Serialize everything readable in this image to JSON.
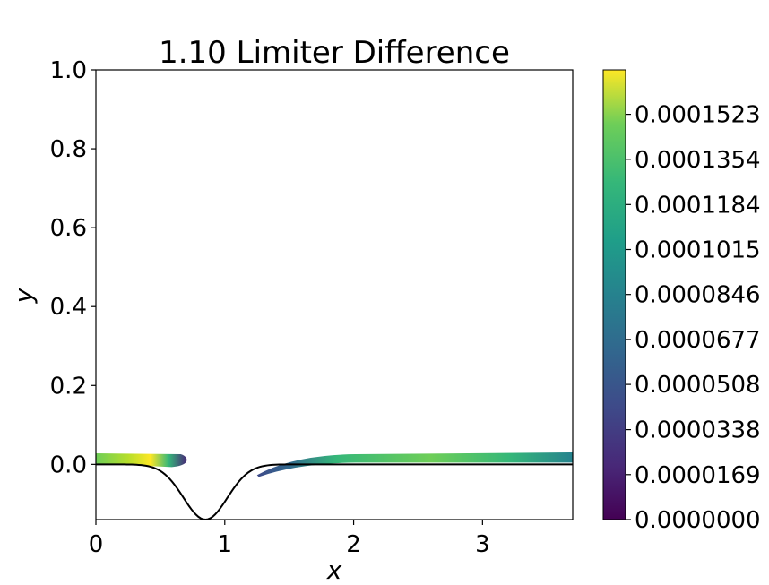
{
  "chart_data": {
    "type": "heatmap",
    "title": "1.10 Limiter Difference",
    "xlabel": "x",
    "ylabel": "y",
    "xlim": [
      0,
      3.7
    ],
    "ylim": [
      -0.14,
      1.0
    ],
    "x_ticks": [
      {
        "value": 0,
        "label": "0"
      },
      {
        "value": 1,
        "label": "1"
      },
      {
        "value": 2,
        "label": "2"
      },
      {
        "value": 3,
        "label": "3"
      }
    ],
    "y_ticks": [
      {
        "value": 0.0,
        "label": "0.0"
      },
      {
        "value": 0.2,
        "label": "0.2"
      },
      {
        "value": 0.4,
        "label": "0.4"
      },
      {
        "value": 0.6,
        "label": "0.6"
      },
      {
        "value": 0.8,
        "label": "0.8"
      },
      {
        "value": 1.0,
        "label": "1.0"
      }
    ],
    "colorbar": {
      "colormap": "viridis",
      "range": [
        0.0,
        0.000169
      ],
      "ticks": [
        {
          "value": 0.0,
          "label": "0.0000000"
        },
        {
          "value": 1.69e-05,
          "label": "0.0000169"
        },
        {
          "value": 3.38e-05,
          "label": "0.0000338"
        },
        {
          "value": 5.08e-05,
          "label": "0.0000508"
        },
        {
          "value": 6.77e-05,
          "label": "0.0000677"
        },
        {
          "value": 8.46e-05,
          "label": "0.0000846"
        },
        {
          "value": 0.0001015,
          "label": "0.0001015"
        },
        {
          "value": 0.0001184,
          "label": "0.0001184"
        },
        {
          "value": 0.0001354,
          "label": "0.0001354"
        },
        {
          "value": 0.0001523,
          "label": "0.0001523"
        }
      ]
    },
    "bump_curve": {
      "description_points": [
        {
          "x": 0.0,
          "y": 0.0
        },
        {
          "x": 0.2,
          "y": -0.003
        },
        {
          "x": 0.4,
          "y": -0.015
        },
        {
          "x": 0.55,
          "y": -0.045
        },
        {
          "x": 0.7,
          "y": -0.105
        },
        {
          "x": 0.85,
          "y": -0.14
        },
        {
          "x": 1.0,
          "y": -0.105
        },
        {
          "x": 1.15,
          "y": -0.045
        },
        {
          "x": 1.3,
          "y": -0.015
        },
        {
          "x": 1.5,
          "y": -0.003
        },
        {
          "x": 1.7,
          "y": 0.0
        },
        {
          "x": 3.7,
          "y": 0.0
        }
      ]
    },
    "heat_regions": [
      {
        "x0": 0.0,
        "x1": 0.7,
        "y0": 0.0,
        "y1": 0.028,
        "peak_x": 0.45,
        "peak_value": 0.00016
      },
      {
        "x0": 1.25,
        "x1": 3.7,
        "y0": 0.0,
        "y1": 0.028,
        "peak_x": 2.6,
        "peak_value": 0.00011
      }
    ],
    "grid": false
  }
}
